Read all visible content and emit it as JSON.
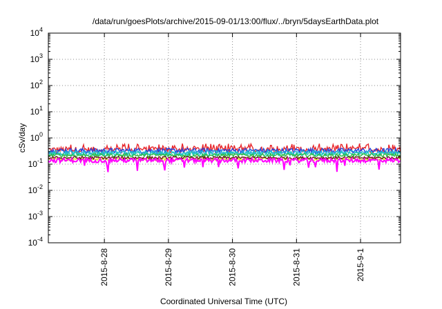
{
  "chart_data": {
    "type": "line",
    "title": "/data/run/goesPlots/archive/2015-09-01/13:00/flux/../bryn/5daysEarthData.plot",
    "xlabel": "Coordinated Universal Time (UTC)",
    "ylabel": "cSv/day",
    "y_scale": "log",
    "ylim": [
      0.0001,
      10000
    ],
    "y_ticks": [
      {
        "value": 0.0001,
        "base": "10",
        "exp": "-4"
      },
      {
        "value": 0.001,
        "base": "10",
        "exp": "-3"
      },
      {
        "value": 0.01,
        "base": "10",
        "exp": "-2"
      },
      {
        "value": 0.1,
        "base": "10",
        "exp": "-1"
      },
      {
        "value": 1,
        "base": "10",
        "exp": "0"
      },
      {
        "value": 10,
        "base": "10",
        "exp": "1"
      },
      {
        "value": 100,
        "base": "10",
        "exp": "2"
      },
      {
        "value": 1000,
        "base": "10",
        "exp": "3"
      },
      {
        "value": 10000,
        "base": "10",
        "exp": "4"
      }
    ],
    "xlim": [
      "2015-08-27T03:00",
      "2015-09-01T15:00"
    ],
    "x_ticks": [
      {
        "date": "2015-08-28T00:00",
        "label": "2015-8-28"
      },
      {
        "date": "2015-08-29T00:00",
        "label": "2015-8-29"
      },
      {
        "date": "2015-08-30T00:00",
        "label": "2015-8-30"
      },
      {
        "date": "2015-08-31T00:00",
        "label": "2015-8-31"
      },
      {
        "date": "2015-09-01T00:00",
        "label": "2015-9-1"
      }
    ],
    "grid": true,
    "series": [
      {
        "color": "#e8262b",
        "level": 0.36,
        "spread": 0.18
      },
      {
        "color": "#2244dd",
        "level": 0.33,
        "spread": 0.15
      },
      {
        "color": "#22aadd",
        "level": 0.28,
        "spread": 0.13
      },
      {
        "color": "#22ccbb",
        "level": 0.25,
        "spread": 0.12
      },
      {
        "color": "#33bb44",
        "level": 0.22,
        "spread": 0.1
      },
      {
        "color": "#dddd22",
        "level": 0.155,
        "spread": 0.08
      },
      {
        "color": "#6a1b1b",
        "level": 0.175,
        "spread": 0.08
      },
      {
        "color": "#ff00ff",
        "level": 0.14,
        "spread": 0.12
      }
    ]
  }
}
